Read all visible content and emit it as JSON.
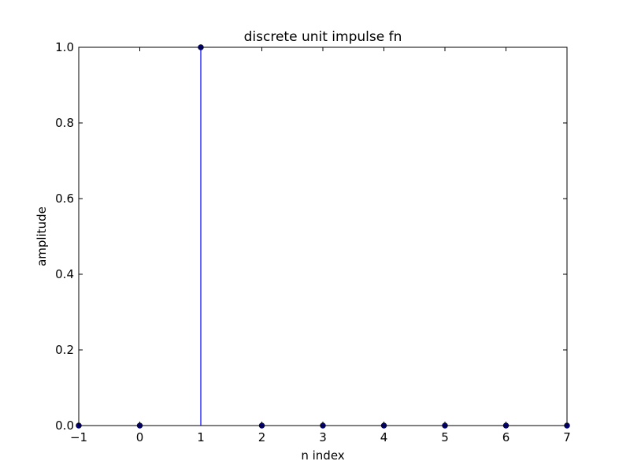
{
  "chart_data": {
    "type": "stem",
    "title": "discrete unit impulse fn",
    "xlabel": "n index",
    "ylabel": "amplitude",
    "xlim": [
      -1,
      7
    ],
    "ylim": [
      0.0,
      1.0
    ],
    "x_ticks": [
      "−1",
      "0",
      "1",
      "2",
      "3",
      "4",
      "5",
      "6",
      "7"
    ],
    "y_ticks": [
      "0.0",
      "0.2",
      "0.4",
      "0.6",
      "0.8",
      "1.0"
    ],
    "grid": false,
    "series": [
      {
        "x": [
          -1,
          0,
          1,
          2,
          3,
          4,
          5,
          6,
          7
        ],
        "y": [
          0,
          0,
          1,
          0,
          0,
          0,
          0,
          0,
          0
        ],
        "color": "#0000ff",
        "marker_color": "#000080"
      }
    ]
  }
}
